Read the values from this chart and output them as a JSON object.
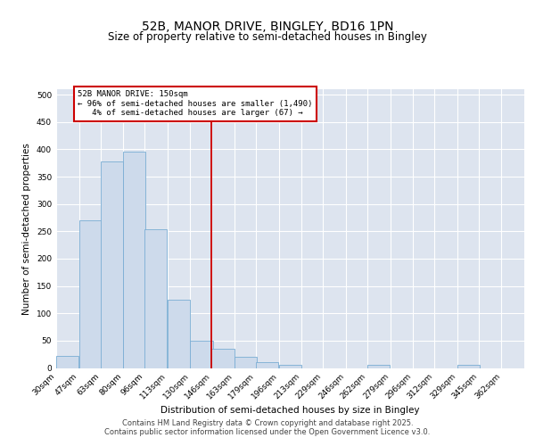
{
  "title": "52B, MANOR DRIVE, BINGLEY, BD16 1PN",
  "subtitle": "Size of property relative to semi-detached houses in Bingley",
  "xlabel": "Distribution of semi-detached houses by size in Bingley",
  "ylabel": "Number of semi-detached properties",
  "property_label": "52B MANOR DRIVE: 150sqm",
  "pct_smaller": 96,
  "count_smaller": 1490,
  "pct_larger": 4,
  "count_larger": 67,
  "bins": [
    30,
    47,
    63,
    80,
    96,
    113,
    130,
    146,
    163,
    179,
    196,
    213,
    229,
    246,
    262,
    279,
    296,
    312,
    329,
    345,
    362
  ],
  "bin_labels": [
    "30sqm",
    "47sqm",
    "63sqm",
    "80sqm",
    "96sqm",
    "113sqm",
    "130sqm",
    "146sqm",
    "163sqm",
    "179sqm",
    "196sqm",
    "213sqm",
    "229sqm",
    "246sqm",
    "262sqm",
    "279sqm",
    "296sqm",
    "312sqm",
    "329sqm",
    "345sqm",
    "362sqm"
  ],
  "bar_heights": [
    22,
    270,
    378,
    395,
    253,
    125,
    50,
    35,
    20,
    10,
    5,
    0,
    0,
    0,
    5,
    0,
    0,
    0,
    5,
    0,
    0
  ],
  "bar_color": "#cddaeb",
  "bar_edge_color": "#7aadd4",
  "vline_color": "#cc0000",
  "vline_x": 146,
  "annotation_box_color": "#cc0000",
  "ylim": [
    0,
    510
  ],
  "yticks": [
    0,
    50,
    100,
    150,
    200,
    250,
    300,
    350,
    400,
    450,
    500
  ],
  "background_color": "#dde4ef",
  "footer_line1": "Contains HM Land Registry data © Crown copyright and database right 2025.",
  "footer_line2": "Contains public sector information licensed under the Open Government Licence v3.0.",
  "title_fontsize": 10,
  "subtitle_fontsize": 8.5,
  "axis_label_fontsize": 7.5,
  "tick_fontsize": 6.5,
  "footer_fontsize": 6
}
